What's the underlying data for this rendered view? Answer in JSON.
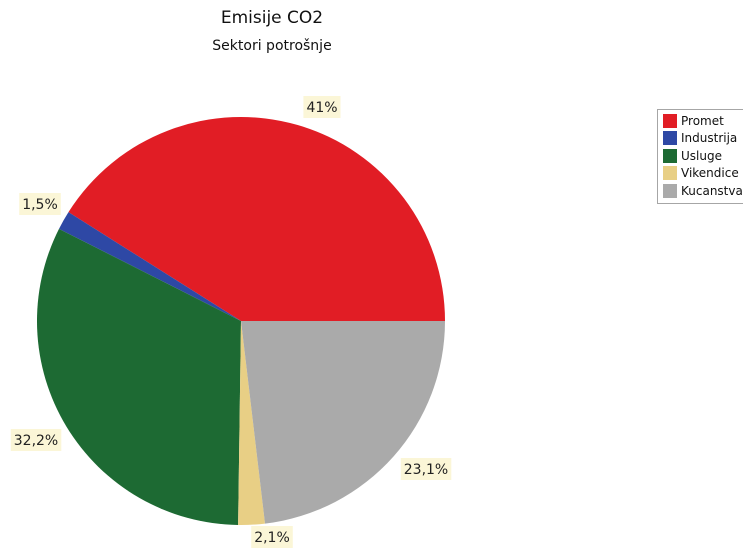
{
  "chart_data": {
    "type": "pie",
    "title": "Emisije CO2",
    "subtitle": "Sektori potrošnje",
    "slices": [
      {
        "name": "Promet",
        "value": 41,
        "label": "41%",
        "color": "#e11d25"
      },
      {
        "name": "Industrija",
        "value": 1.5,
        "label": "1,5%",
        "color": "#2e48a5"
      },
      {
        "name": "Usluge",
        "value": 32.2,
        "label": "32,2%",
        "color": "#1d6a33"
      },
      {
        "name": "Vikendice",
        "value": 2.1,
        "label": "2,1%",
        "color": "#e8cf85"
      },
      {
        "name": "Kucanstva",
        "value": 23.1,
        "label": "23,1%",
        "color": "#aaaaaa"
      }
    ],
    "legend_position": "top-right"
  }
}
